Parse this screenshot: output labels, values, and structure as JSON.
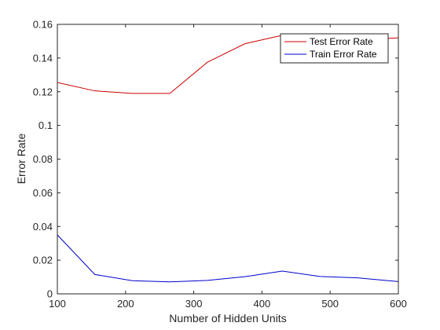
{
  "chart_data": {
    "type": "line",
    "title": "",
    "xlabel": "Number of Hidden Units",
    "ylabel": "Error Rate",
    "xlim": [
      100,
      600
    ],
    "ylim": [
      0,
      0.16
    ],
    "xticks": [
      100,
      200,
      300,
      400,
      500,
      600
    ],
    "xtick_labels": [
      "100",
      "200",
      "300",
      "400",
      "500",
      "600"
    ],
    "yticks": [
      0,
      0.02,
      0.04,
      0.06,
      0.08,
      0.1,
      0.12,
      0.14,
      0.16
    ],
    "ytick_labels": [
      "0",
      "0.02",
      "0.04",
      "0.06",
      "0.08",
      "0.1",
      "0.12",
      "0.14",
      "0.16"
    ],
    "grid": false,
    "legend_position": "top-right",
    "series": [
      {
        "name": "Test Error Rate",
        "color": "#cc0000",
        "x": [
          100,
          155,
          210,
          265,
          320,
          375,
          430,
          485,
          540,
          600
        ],
        "y": [
          0.1255,
          0.1205,
          0.119,
          0.119,
          0.1375,
          0.1485,
          0.1535,
          0.1535,
          0.1505,
          0.152
        ]
      },
      {
        "name": "Train Error Rate",
        "color": "#0000cc",
        "x": [
          100,
          155,
          210,
          265,
          320,
          375,
          430,
          485,
          540,
          600
        ],
        "y": [
          0.035,
          0.0115,
          0.0078,
          0.0071,
          0.008,
          0.0102,
          0.0135,
          0.0103,
          0.0095,
          0.0073
        ]
      }
    ]
  }
}
